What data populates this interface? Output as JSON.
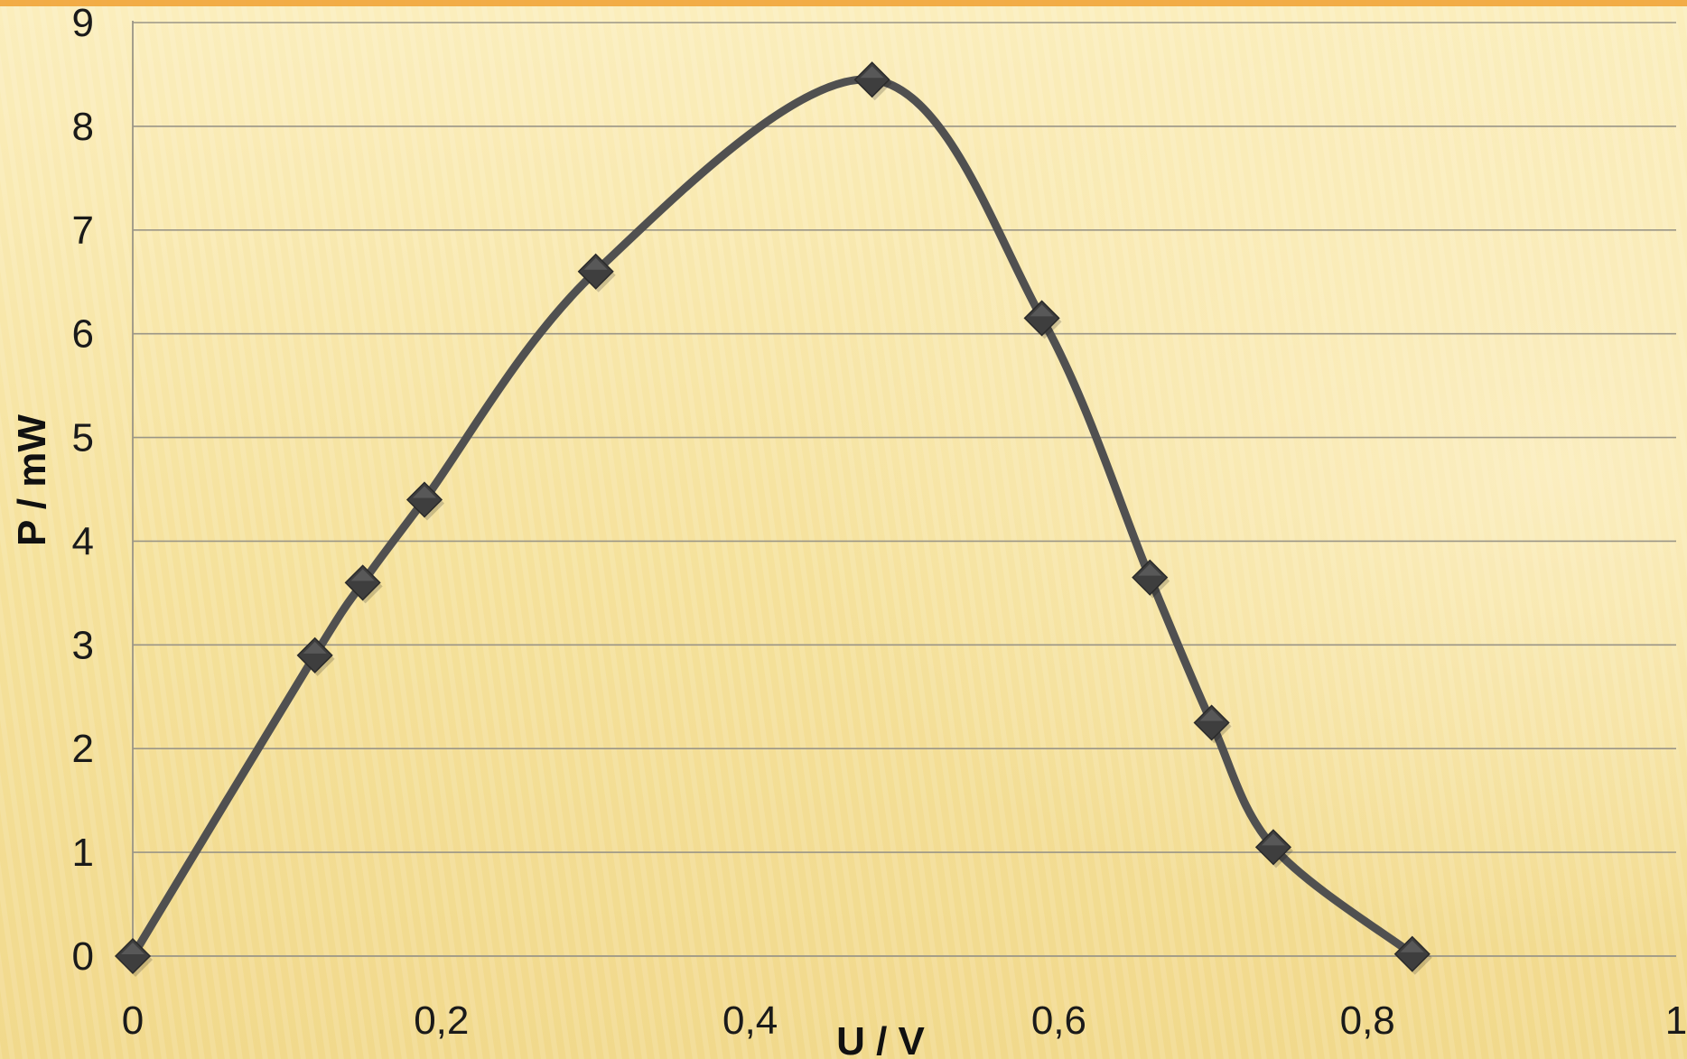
{
  "chart_data": {
    "type": "scatter",
    "smooth": true,
    "xlabel": "U / V",
    "ylabel": "P / mW",
    "xlim": [
      0,
      1
    ],
    "ylim": [
      0,
      9
    ],
    "x_ticks": [
      "0",
      "0,2",
      "0,4",
      "0,6",
      "0,8",
      "1"
    ],
    "x_tick_values": [
      0,
      0.2,
      0.4,
      0.6,
      0.8,
      1
    ],
    "y_ticks": [
      "0",
      "1",
      "2",
      "3",
      "4",
      "5",
      "6",
      "7",
      "8",
      "9"
    ],
    "y_tick_values": [
      0,
      1,
      2,
      3,
      4,
      5,
      6,
      7,
      8,
      9
    ],
    "grid": "horizontal",
    "series": [
      {
        "x": [
          0,
          0.118,
          0.149,
          0.189,
          0.3,
          0.479,
          0.589,
          0.659,
          0.699,
          0.739,
          0.829
        ],
        "y": [
          0,
          2.9,
          3.6,
          4.4,
          6.6,
          8.45,
          6.15,
          3.65,
          2.25,
          1.05,
          0.02
        ],
        "color": "#505050",
        "marker": "diamond"
      }
    ],
    "colors": {
      "background_light": "#fbeec2",
      "background_dark": "#efd890",
      "gridline": "#9a9586",
      "line": "#505050",
      "marker": "#3e3e3e",
      "top_accent": "#f0a030"
    }
  }
}
